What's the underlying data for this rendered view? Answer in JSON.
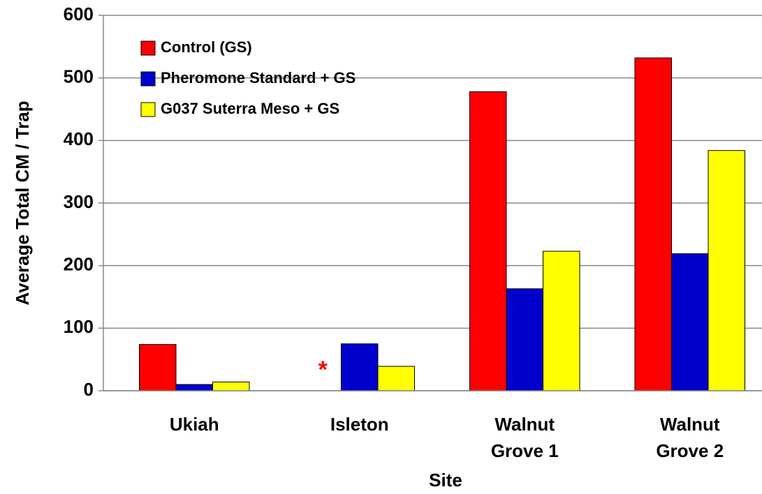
{
  "chart_data": {
    "type": "bar",
    "categories": [
      "Ukiah",
      "Isleton",
      "Walnut Grove 1",
      "Walnut Grove 2"
    ],
    "series": [
      {
        "name": "Control (GS)",
        "color": "#ff0000",
        "values": [
          74,
          null,
          478,
          532
        ]
      },
      {
        "name": "Pheromone Standard + GS",
        "color": "#0000cc",
        "values": [
          10,
          75,
          163,
          219
        ]
      },
      {
        "name": "G037 Suterra Meso + GS",
        "color": "#ffff00",
        "values": [
          14,
          39,
          223,
          384
        ]
      }
    ],
    "annotation": "*",
    "xlabel": "Site",
    "ylabel": "Average Total CM / Trap",
    "ylim": [
      0,
      600
    ],
    "yticks": [
      0,
      100,
      200,
      300,
      400,
      500,
      600
    ],
    "grid": true,
    "legend": "upper left"
  }
}
